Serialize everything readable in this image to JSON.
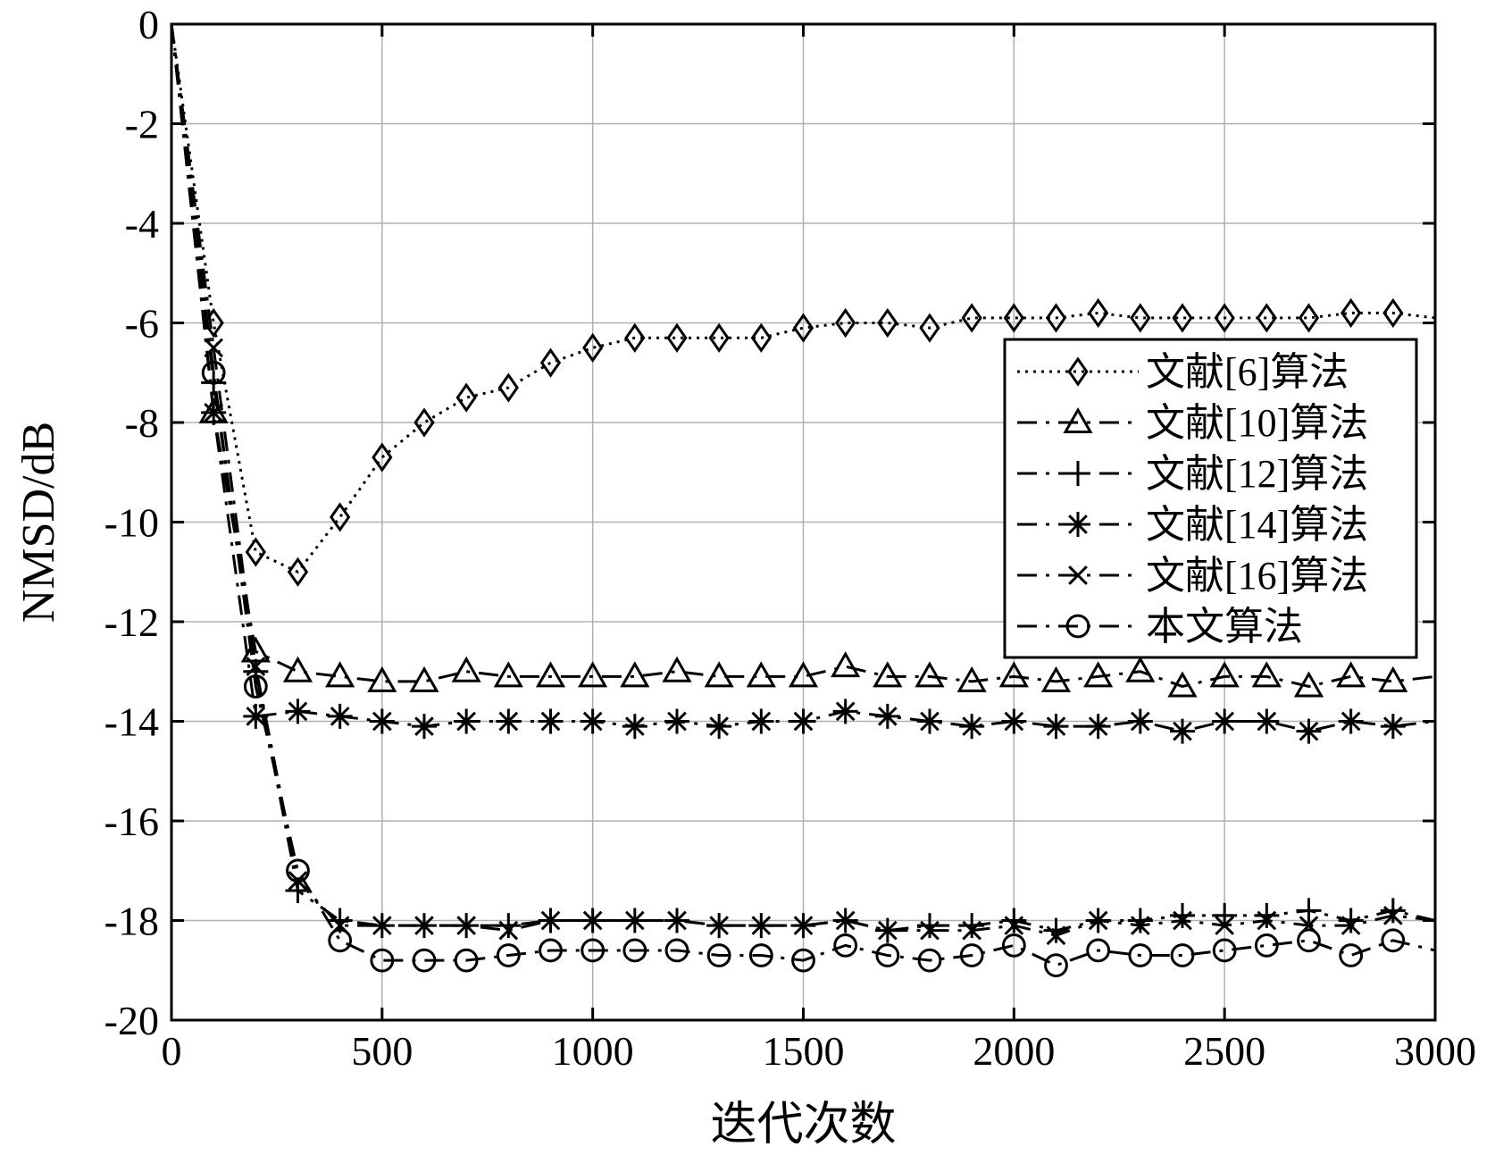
{
  "chart_data": {
    "type": "line",
    "xlabel": "迭代次数",
    "ylabel": "NMSD/dB",
    "xlim": [
      0,
      3000
    ],
    "ylim": [
      -20,
      0
    ],
    "x_ticks": [
      0,
      500,
      1000,
      1500,
      2000,
      2500,
      3000
    ],
    "y_ticks": [
      0,
      -2,
      -4,
      -6,
      -8,
      -10,
      -12,
      -14,
      -16,
      -18,
      -20
    ],
    "x_tick_labels": [
      "0",
      "500",
      "1000",
      "1500",
      "2000",
      "2500",
      "3000"
    ],
    "y_tick_labels": [
      "0",
      "-2",
      "-4",
      "-6",
      "-8",
      "-10",
      "-12",
      "-14",
      "-16",
      "-18",
      "-20"
    ],
    "grid": true,
    "legend_position": "right",
    "x": [
      0,
      100,
      200,
      300,
      400,
      500,
      600,
      700,
      800,
      900,
      1000,
      1100,
      1200,
      1300,
      1400,
      1500,
      1600,
      1700,
      1800,
      1900,
      2000,
      2100,
      2200,
      2300,
      2400,
      2500,
      2600,
      2700,
      2800,
      2900,
      3000
    ],
    "series": [
      {
        "name": "文献[6]算法",
        "marker": "diamond",
        "line_style": "dotted",
        "values": [
          0,
          -6.0,
          -10.6,
          -11.0,
          -9.9,
          -8.7,
          -8.0,
          -7.5,
          -7.3,
          -6.8,
          -6.5,
          -6.3,
          -6.3,
          -6.3,
          -6.3,
          -6.1,
          -6.0,
          -6.0,
          -6.1,
          -5.9,
          -5.9,
          -5.9,
          -5.8,
          -5.9,
          -5.9,
          -5.9,
          -5.9,
          -5.9,
          -5.8,
          -5.8,
          -5.9
        ]
      },
      {
        "name": "文献[10]算法",
        "marker": "triangle",
        "line_style": "dashed",
        "values": [
          0,
          -7.8,
          -12.6,
          -13.0,
          -13.1,
          -13.2,
          -13.2,
          -13.0,
          -13.1,
          -13.1,
          -13.1,
          -13.1,
          -13.0,
          -13.1,
          -13.1,
          -13.1,
          -12.9,
          -13.1,
          -13.1,
          -13.2,
          -13.1,
          -13.2,
          -13.1,
          -13.0,
          -13.3,
          -13.1,
          -13.1,
          -13.3,
          -13.1,
          -13.2,
          -13.1
        ]
      },
      {
        "name": "文献[12]算法",
        "marker": "plus",
        "line_style": "dashed",
        "values": [
          0,
          -7.2,
          -13.0,
          -17.4,
          -18.0,
          -18.1,
          -18.1,
          -18.1,
          -18.1,
          -18.0,
          -18.0,
          -18.0,
          -18.0,
          -18.1,
          -18.1,
          -18.1,
          -18.0,
          -18.2,
          -18.1,
          -18.1,
          -18.0,
          -18.2,
          -18.0,
          -18.0,
          -17.9,
          -17.9,
          -17.9,
          -17.8,
          -18.0,
          -17.8,
          -18.0
        ]
      },
      {
        "name": "文献[14]算法",
        "marker": "asterisk",
        "line_style": "dashed",
        "values": [
          0,
          -7.8,
          -13.9,
          -13.8,
          -13.9,
          -14.0,
          -14.1,
          -14.0,
          -14.0,
          -14.0,
          -14.0,
          -14.1,
          -14.0,
          -14.1,
          -14.0,
          -14.0,
          -13.8,
          -13.9,
          -14.0,
          -14.1,
          -14.0,
          -14.1,
          -14.1,
          -14.0,
          -14.2,
          -14.0,
          -14.0,
          -14.2,
          -14.0,
          -14.1,
          -14.0
        ]
      },
      {
        "name": "文献[16]算法",
        "marker": "x",
        "line_style": "dashed",
        "values": [
          0,
          -6.5,
          -12.9,
          -17.2,
          -18.1,
          -18.1,
          -18.1,
          -18.1,
          -18.2,
          -18.0,
          -18.0,
          -18.0,
          -18.0,
          -18.1,
          -18.1,
          -18.1,
          -18.0,
          -18.2,
          -18.2,
          -18.2,
          -18.1,
          -18.3,
          -18.0,
          -18.1,
          -18.0,
          -18.1,
          -18.0,
          -18.1,
          -18.1,
          -17.9,
          -18.0
        ]
      },
      {
        "name": "本文算法",
        "marker": "circle",
        "line_style": "dashed",
        "values": [
          0,
          -7.0,
          -13.3,
          -17.0,
          -18.4,
          -18.8,
          -18.8,
          -18.8,
          -18.7,
          -18.6,
          -18.6,
          -18.6,
          -18.6,
          -18.7,
          -18.7,
          -18.8,
          -18.5,
          -18.7,
          -18.8,
          -18.7,
          -18.5,
          -18.9,
          -18.6,
          -18.7,
          -18.7,
          -18.6,
          -18.5,
          -18.4,
          -18.7,
          -18.4,
          -18.6
        ]
      }
    ]
  }
}
